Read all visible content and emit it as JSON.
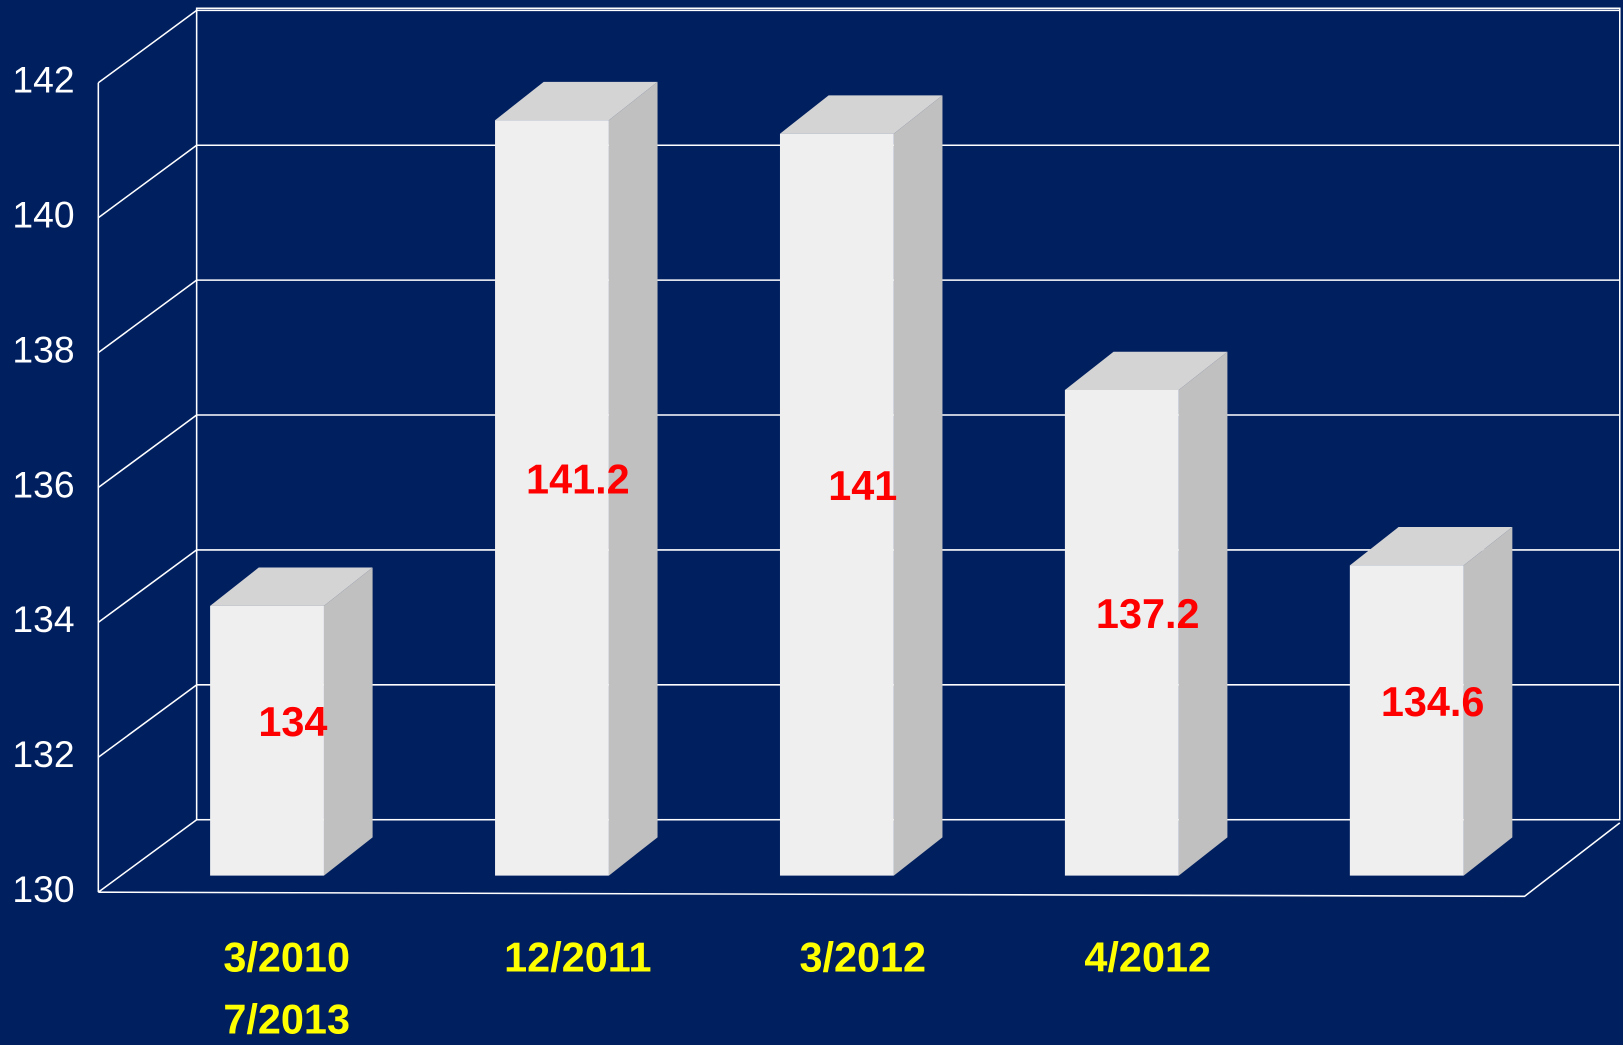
{
  "chart_data": {
    "type": "bar3d",
    "categories": [
      "3/2010",
      "12/2011",
      "3/2012",
      "4/2012",
      null
    ],
    "annotations": [
      "7/2013"
    ],
    "values": [
      134,
      141.2,
      141,
      137.2,
      134.6
    ],
    "color": "#efefef",
    "ylim": [
      130,
      142
    ],
    "yticks": [
      130,
      132,
      134,
      136,
      138,
      140,
      142
    ],
    "grid": true
  }
}
